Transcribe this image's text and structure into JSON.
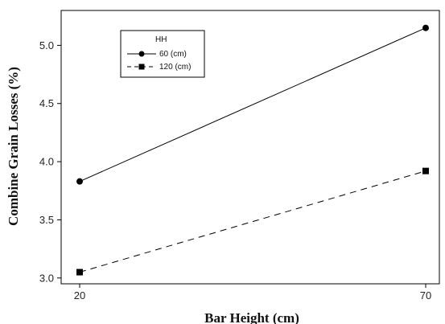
{
  "chart_data": {
    "type": "line",
    "xlabel": "Bar Height (cm)",
    "ylabel": "Combine Grain Losses (%)",
    "x": [
      20,
      70
    ],
    "xticks": [
      20,
      70
    ],
    "yticks": [
      3.0,
      3.5,
      4.0,
      4.5,
      5.0
    ],
    "ylim": [
      2.95,
      5.3
    ],
    "legend": {
      "title": "HH",
      "position": "top-left"
    },
    "series": [
      {
        "name": "60 (cm)",
        "values": [
          3.83,
          5.15
        ],
        "marker": "circle",
        "style": "solid",
        "color": "#000000"
      },
      {
        "name": "120 (cm)",
        "values": [
          3.05,
          3.92
        ],
        "marker": "square",
        "style": "dashed",
        "color": "#000000"
      }
    ]
  }
}
